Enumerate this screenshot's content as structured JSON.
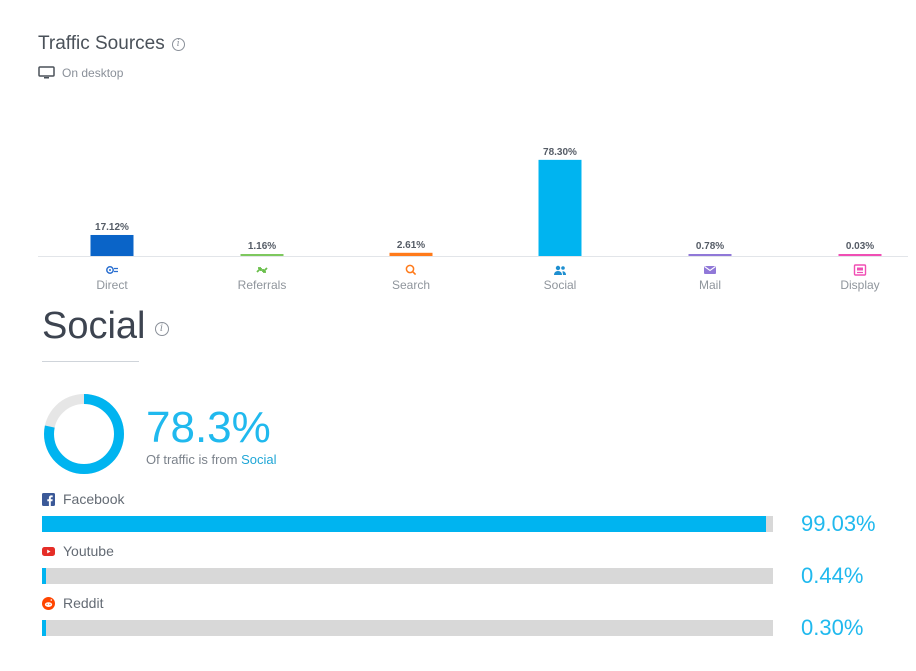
{
  "header": {
    "title": "Traffic Sources",
    "device_label": "On desktop"
  },
  "chart_data": {
    "type": "bar",
    "categories": [
      "Direct",
      "Referrals",
      "Search",
      "Social",
      "Mail",
      "Display"
    ],
    "values": [
      17.12,
      1.16,
      2.61,
      78.3,
      0.78,
      0.03
    ],
    "value_labels": [
      "17.12%",
      "1.16%",
      "2.61%",
      "78.30%",
      "0.78%",
      "0.03%"
    ],
    "colors": [
      "#0a64c8",
      "#7ec85e",
      "#ff7a1a",
      "#00b4f0",
      "#9078d8",
      "#f04eb4"
    ],
    "icons": [
      "direct-icon",
      "referrals-icon",
      "search-icon",
      "social-icon",
      "mail-icon",
      "display-icon"
    ],
    "title": "",
    "xlabel": "",
    "ylabel": "",
    "ylim": [
      0,
      100
    ],
    "grid": false
  },
  "social": {
    "title": "Social",
    "share_value": 78.3,
    "share_label": "78.3%",
    "note_prefix": "Of traffic is from",
    "note_accent": "Social",
    "donut_colors": {
      "fill": "#00b4f0",
      "track": "#e6e6e6"
    },
    "sources": [
      {
        "name": "Facebook",
        "icon": "facebook-icon",
        "value": 99.03,
        "label": "99.03%"
      },
      {
        "name": "Youtube",
        "icon": "youtube-icon",
        "value": 0.44,
        "label": "0.44%"
      },
      {
        "name": "Reddit",
        "icon": "reddit-icon",
        "value": 0.3,
        "label": "0.30%"
      }
    ]
  }
}
